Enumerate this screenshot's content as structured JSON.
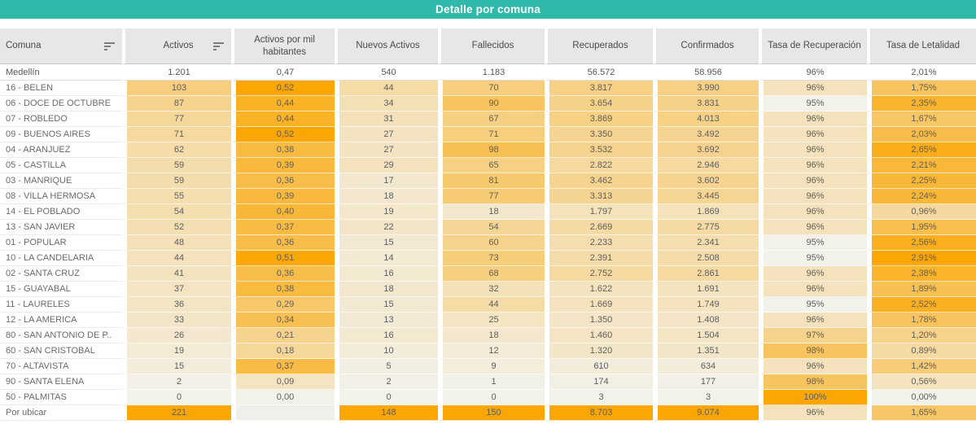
{
  "title": "Detalle por comuna",
  "theme": {
    "title_bg": "#2FB9AB",
    "title_color": "#FFFFFF",
    "header_bg": "#E7E7E7",
    "header_text": "#4A4A4A",
    "cell_text": "#5E5E5E",
    "heat_low": "#F2F1EA",
    "heat_high": "#FBA602",
    "heat_empty": "#EFEFEC"
  },
  "icons": {
    "comuna_sort": "sort-descending-icon",
    "activos_sort": "sort-descending-icon"
  },
  "chart_data": {
    "type": "table",
    "title": "Detalle por comuna",
    "legend_position": "none",
    "heatmap": "per-column orange sequential, total row unshaded",
    "columns": [
      {
        "key": "comuna",
        "label": "Comuna",
        "sort_icon": true,
        "type": "label"
      },
      {
        "key": "activos",
        "label": "Activos",
        "sort_icon": true,
        "type": "measure"
      },
      {
        "key": "activos_mil",
        "label": "Activos por mil habitantes",
        "sort_icon": false,
        "type": "measure"
      },
      {
        "key": "nuevos_activos",
        "label": "Nuevos Activos",
        "sort_icon": false,
        "type": "measure"
      },
      {
        "key": "fallecidos",
        "label": "Fallecidos",
        "sort_icon": false,
        "type": "measure"
      },
      {
        "key": "recuperados",
        "label": "Recuperados",
        "sort_icon": false,
        "type": "measure"
      },
      {
        "key": "confirmados",
        "label": "Confirmados",
        "sort_icon": false,
        "type": "measure"
      },
      {
        "key": "tasa_recuperacion",
        "label": "Tasa de Recuperación",
        "sort_icon": false,
        "type": "measure"
      },
      {
        "key": "tasa_letalidad",
        "label": "Tasa de Letalidad",
        "sort_icon": false,
        "type": "measure"
      }
    ],
    "total_row": [
      "Medellín",
      "1.201",
      "0,47",
      "540",
      "1.183",
      "56.572",
      "58.956",
      "96%",
      "2,01%"
    ],
    "rows": [
      [
        "16 - BELEN",
        "103",
        "0,52",
        "44",
        "70",
        "3.817",
        "3.990",
        "96%",
        "1,75%"
      ],
      [
        "06 - DOCE DE OCTUBRE",
        "87",
        "0,44",
        "34",
        "90",
        "3.654",
        "3.831",
        "95%",
        "2,35%"
      ],
      [
        "07 - ROBLEDO",
        "77",
        "0,44",
        "31",
        "67",
        "3.869",
        "4.013",
        "96%",
        "1,67%"
      ],
      [
        "09 - BUENOS AIRES",
        "71",
        "0,52",
        "27",
        "71",
        "3.350",
        "3.492",
        "96%",
        "2,03%"
      ],
      [
        "04 - ARANJUEZ",
        "62",
        "0,38",
        "27",
        "98",
        "3.532",
        "3.692",
        "96%",
        "2,65%"
      ],
      [
        "05 - CASTILLA",
        "59",
        "0,39",
        "29",
        "65",
        "2.822",
        "2.946",
        "96%",
        "2,21%"
      ],
      [
        "03 - MANRIQUE",
        "59",
        "0,36",
        "17",
        "81",
        "3.462",
        "3.602",
        "96%",
        "2,25%"
      ],
      [
        "08 - VILLA HERMOSA",
        "55",
        "0,39",
        "18",
        "77",
        "3.313",
        "3.445",
        "96%",
        "2,24%"
      ],
      [
        "14 - EL POBLADO",
        "54",
        "0,40",
        "19",
        "18",
        "1.797",
        "1.869",
        "96%",
        "0,96%"
      ],
      [
        "13 - SAN JAVIER",
        "52",
        "0,37",
        "22",
        "54",
        "2.669",
        "2.775",
        "96%",
        "1,95%"
      ],
      [
        "01 - POPULAR",
        "48",
        "0,36",
        "15",
        "60",
        "2.233",
        "2.341",
        "95%",
        "2,56%"
      ],
      [
        "10 - LA CANDELARIA",
        "44",
        "0,51",
        "14",
        "73",
        "2.391",
        "2.508",
        "95%",
        "2,91%"
      ],
      [
        "02 - SANTA CRUZ",
        "41",
        "0,36",
        "16",
        "68",
        "2.752",
        "2.861",
        "96%",
        "2,38%"
      ],
      [
        "15 - GUAYABAL",
        "37",
        "0,38",
        "18",
        "32",
        "1.622",
        "1.691",
        "96%",
        "1,89%"
      ],
      [
        "11 - LAURELES",
        "36",
        "0,29",
        "15",
        "44",
        "1.669",
        "1.749",
        "95%",
        "2,52%"
      ],
      [
        "12 - LA AMERICA",
        "33",
        "0,34",
        "13",
        "25",
        "1.350",
        "1.408",
        "96%",
        "1,78%"
      ],
      [
        "80 - SAN ANTONIO DE P..",
        "26",
        "0,21",
        "16",
        "18",
        "1.460",
        "1.504",
        "97%",
        "1,20%"
      ],
      [
        "60 - SAN CRISTOBAL",
        "19",
        "0,18",
        "10",
        "12",
        "1.320",
        "1.351",
        "98%",
        "0,89%"
      ],
      [
        "70 - ALTAVISTA",
        "15",
        "0,37",
        "5",
        "9",
        "610",
        "634",
        "96%",
        "1,42%"
      ],
      [
        "90 - SANTA ELENA",
        "2",
        "0,09",
        "2",
        "1",
        "174",
        "177",
        "98%",
        "0,56%"
      ],
      [
        "50 - PALMITAS",
        "0",
        "0,00",
        "0",
        "0",
        "3",
        "3",
        "100%",
        "0,00%"
      ],
      [
        "Por ubicar",
        "221",
        null,
        "148",
        "150",
        "8.703",
        "9.074",
        "96%",
        "1,65%"
      ]
    ]
  }
}
